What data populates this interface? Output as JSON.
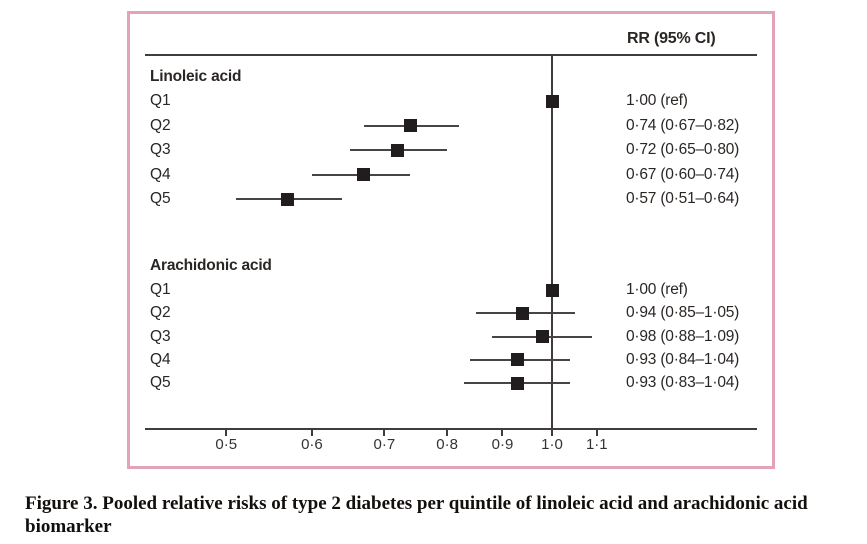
{
  "caption": "Figure 3. Pooled relative risks of type 2 diabetes per quintile of linoleic acid and arachidonic acid biomarker",
  "colors": {
    "box_border": "#e2a3b7",
    "line_ink": "#3f3c3b",
    "marker_ink": "#211d1e",
    "text_ink": "#2a2624"
  },
  "chart_data": {
    "type": "forest",
    "column_header": "RR (95% CI)",
    "x_scale": "log",
    "reference_value": 1.0,
    "x_ticks": [
      0.5,
      0.6,
      0.7,
      0.8,
      0.9,
      1.0,
      1.1
    ],
    "x_tick_labels": [
      "0·5",
      "0·6",
      "0·7",
      "0·8",
      "0·9",
      "1·0",
      "1·1"
    ],
    "grid": "off",
    "groups": [
      {
        "name": "Linoleic acid",
        "rows": [
          {
            "label": "Q1",
            "rr": 1.0,
            "ci_low": null,
            "ci_high": null,
            "display": "1·00 (ref)"
          },
          {
            "label": "Q2",
            "rr": 0.74,
            "ci_low": 0.67,
            "ci_high": 0.82,
            "display": "0·74 (0·67–0·82)"
          },
          {
            "label": "Q3",
            "rr": 0.72,
            "ci_low": 0.65,
            "ci_high": 0.8,
            "display": "0·72 (0·65–0·80)"
          },
          {
            "label": "Q4",
            "rr": 0.67,
            "ci_low": 0.6,
            "ci_high": 0.74,
            "display": "0·67 (0·60–0·74)"
          },
          {
            "label": "Q5",
            "rr": 0.57,
            "ci_low": 0.51,
            "ci_high": 0.64,
            "display": "0·57 (0·51–0·64)"
          }
        ]
      },
      {
        "name": "Arachidonic acid",
        "rows": [
          {
            "label": "Q1",
            "rr": 1.0,
            "ci_low": null,
            "ci_high": null,
            "display": "1·00 (ref)"
          },
          {
            "label": "Q2",
            "rr": 0.94,
            "ci_low": 0.85,
            "ci_high": 1.05,
            "display": "0·94 (0·85–1·05)"
          },
          {
            "label": "Q3",
            "rr": 0.98,
            "ci_low": 0.88,
            "ci_high": 1.09,
            "display": "0·98 (0·88–1·09)"
          },
          {
            "label": "Q4",
            "rr": 0.93,
            "ci_low": 0.84,
            "ci_high": 1.04,
            "display": "0·93 (0·84–1·04)"
          },
          {
            "label": "Q5",
            "rr": 0.93,
            "ci_low": 0.83,
            "ci_high": 1.04,
            "display": "0·93 (0·83–1·04)"
          }
        ]
      }
    ]
  }
}
